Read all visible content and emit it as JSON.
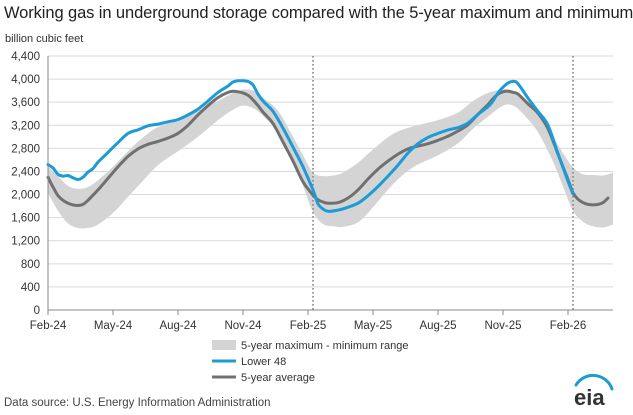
{
  "chart_data": {
    "type": "area",
    "title": "Working gas in underground  storage compared with the 5-year maximum and minimum",
    "ylabel": "billion cubic feet",
    "xlabel": "",
    "ylim": [
      0,
      4400
    ],
    "yticks": [
      0,
      400,
      800,
      1200,
      1600,
      2000,
      2400,
      2800,
      3200,
      3600,
      4000,
      4400
    ],
    "ytick_labels": [
      "0",
      "400",
      "800",
      "1,200",
      "1,600",
      "2,000",
      "2,400",
      "2,800",
      "3,200",
      "3,600",
      "4,000",
      "4,400"
    ],
    "x_unit": "week index from 2 Feb 2024",
    "xlim": [
      0,
      113
    ],
    "xticks": [
      {
        "label": "Feb-24",
        "week": 0
      },
      {
        "label": "May-24",
        "week": 13
      },
      {
        "label": "Aug-24",
        "week": 26
      },
      {
        "label": "Nov-24",
        "week": 39
      },
      {
        "label": "Feb-25",
        "week": 52
      },
      {
        "label": "May-25",
        "week": 65
      },
      {
        "label": "Aug-25",
        "week": 78
      },
      {
        "label": "Nov-25",
        "week": 91
      },
      {
        "label": "Feb-26",
        "week": 104
      }
    ],
    "vertical_markers": [
      {
        "week": 53,
        "style": "dotted"
      },
      {
        "week": 105,
        "style": "dotted"
      }
    ],
    "grid": true,
    "legend_position": "bottom-center",
    "range_band": {
      "name": "5-year maximum - minimum range",
      "color": "#d4d4d4",
      "x": [
        0,
        2,
        4,
        6,
        8,
        10,
        13,
        16,
        19,
        22,
        26,
        30,
        34,
        37,
        39,
        41,
        43,
        46,
        49,
        51,
        53,
        55,
        57,
        59,
        62,
        65,
        69,
        73,
        78,
        82,
        85,
        88,
        91,
        93,
        95,
        98,
        101,
        103,
        105,
        107,
        109,
        111,
        113
      ],
      "max": [
        2480,
        2320,
        2150,
        2100,
        2130,
        2250,
        2480,
        2750,
        2990,
        3170,
        3290,
        3450,
        3620,
        3760,
        3820,
        3800,
        3680,
        3450,
        3000,
        2680,
        2380,
        2320,
        2330,
        2380,
        2550,
        2780,
        3050,
        3180,
        3290,
        3420,
        3620,
        3760,
        3820,
        3800,
        3680,
        3450,
        3000,
        2720,
        2470,
        2350,
        2340,
        2330,
        2380
      ],
      "min": [
        2020,
        1720,
        1500,
        1420,
        1420,
        1480,
        1680,
        1960,
        2240,
        2510,
        2750,
        3000,
        3290,
        3470,
        3540,
        3500,
        3360,
        3080,
        2580,
        2150,
        1700,
        1490,
        1450,
        1440,
        1520,
        1780,
        2180,
        2470,
        2680,
        2890,
        3140,
        3350,
        3540,
        3540,
        3400,
        3080,
        2570,
        2140,
        1720,
        1530,
        1450,
        1430,
        1480
      ]
    },
    "series": [
      {
        "name": "Lower 48",
        "color": "#1b9bd7",
        "x": [
          0,
          1,
          2,
          3,
          4,
          5,
          6,
          7,
          8,
          9,
          10,
          12,
          14,
          16,
          18,
          20,
          22,
          24,
          26,
          28,
          30,
          32,
          34,
          36,
          37,
          38,
          39,
          40,
          41,
          42,
          43,
          45,
          47,
          49,
          51,
          53,
          54,
          55,
          56,
          58,
          60,
          62,
          64,
          66,
          68,
          70,
          72,
          74,
          76,
          78,
          80,
          82,
          84,
          86,
          88,
          89,
          90,
          91,
          92,
          93,
          94,
          96,
          98,
          100,
          102,
          104,
          105
        ],
        "values": [
          2520,
          2460,
          2350,
          2320,
          2330,
          2290,
          2260,
          2300,
          2390,
          2450,
          2560,
          2730,
          2900,
          3060,
          3120,
          3190,
          3220,
          3260,
          3300,
          3380,
          3480,
          3620,
          3770,
          3880,
          3950,
          3970,
          3970,
          3960,
          3900,
          3740,
          3620,
          3440,
          3150,
          2820,
          2480,
          2080,
          1840,
          1750,
          1710,
          1730,
          1780,
          1850,
          1980,
          2140,
          2320,
          2510,
          2720,
          2880,
          2990,
          3060,
          3120,
          3160,
          3240,
          3390,
          3520,
          3620,
          3760,
          3860,
          3930,
          3960,
          3920,
          3670,
          3440,
          3200,
          2710,
          2230,
          2010
        ]
      },
      {
        "name": "5-year average",
        "color": "#707070",
        "x": [
          0,
          1,
          2,
          3,
          4,
          5,
          6,
          7,
          8,
          9,
          10,
          12,
          14,
          16,
          18,
          20,
          22,
          24,
          26,
          28,
          30,
          32,
          34,
          36,
          37,
          38,
          39,
          40,
          41,
          42,
          43,
          45,
          47,
          49,
          51,
          53,
          54,
          55,
          56,
          58,
          60,
          62,
          64,
          66,
          68,
          70,
          72,
          74,
          76,
          78,
          80,
          82,
          84,
          86,
          88,
          89,
          90,
          91,
          92,
          93,
          94,
          96,
          98,
          100,
          102,
          104,
          105,
          106,
          107,
          108,
          109,
          110,
          111,
          112
        ],
        "values": [
          2300,
          2130,
          1980,
          1900,
          1850,
          1820,
          1810,
          1830,
          1900,
          1990,
          2080,
          2280,
          2480,
          2660,
          2790,
          2870,
          2920,
          2980,
          3060,
          3200,
          3380,
          3540,
          3680,
          3770,
          3790,
          3780,
          3760,
          3720,
          3640,
          3540,
          3430,
          3230,
          2910,
          2580,
          2220,
          1990,
          1910,
          1870,
          1850,
          1860,
          1940,
          2080,
          2270,
          2440,
          2580,
          2700,
          2790,
          2840,
          2880,
          2940,
          3010,
          3100,
          3210,
          3390,
          3560,
          3660,
          3740,
          3780,
          3790,
          3770,
          3740,
          3570,
          3410,
          3140,
          2700,
          2260,
          2030,
          1920,
          1860,
          1830,
          1820,
          1830,
          1860,
          1940
        ]
      }
    ]
  },
  "legend": {
    "range_label": "5-year maximum - minimum range",
    "lower48_label": "Lower 48",
    "average_label": "5-year average"
  },
  "footer": {
    "source_text": "Data source:  U.S. Energy Information Administration",
    "logo_text": "eia"
  },
  "colors": {
    "lower48": "#1b9bd7",
    "average": "#707070",
    "range": "#d4d4d4",
    "grid": "#d9d9d9",
    "axis": "#888888"
  }
}
